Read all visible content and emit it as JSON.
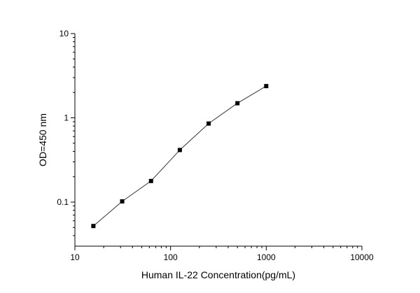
{
  "chart_data": {
    "type": "scatter",
    "title": "",
    "xlabel": "Human IL-22 Concentration(pg/mL)",
    "ylabel": "OD=450 nm",
    "x_scale": "log",
    "y_scale": "log",
    "xlim": [
      10,
      10000
    ],
    "ylim": [
      0.03,
      10
    ],
    "x_ticks": [
      10,
      100,
      1000,
      10000
    ],
    "x_tick_labels": [
      "10",
      "100",
      "1000",
      "10000"
    ],
    "y_ticks": [
      0.1,
      1,
      10
    ],
    "y_tick_labels": [
      "0.1",
      "1",
      "10"
    ],
    "grid": false,
    "legend": "none",
    "series": [
      {
        "x": [
          15.6,
          31.2,
          62.5,
          125,
          250,
          500,
          1000
        ],
        "y": [
          0.052,
          0.102,
          0.178,
          0.415,
          0.856,
          1.49,
          2.38
        ],
        "marker": "square",
        "line": true,
        "color": "#000000"
      }
    ]
  }
}
